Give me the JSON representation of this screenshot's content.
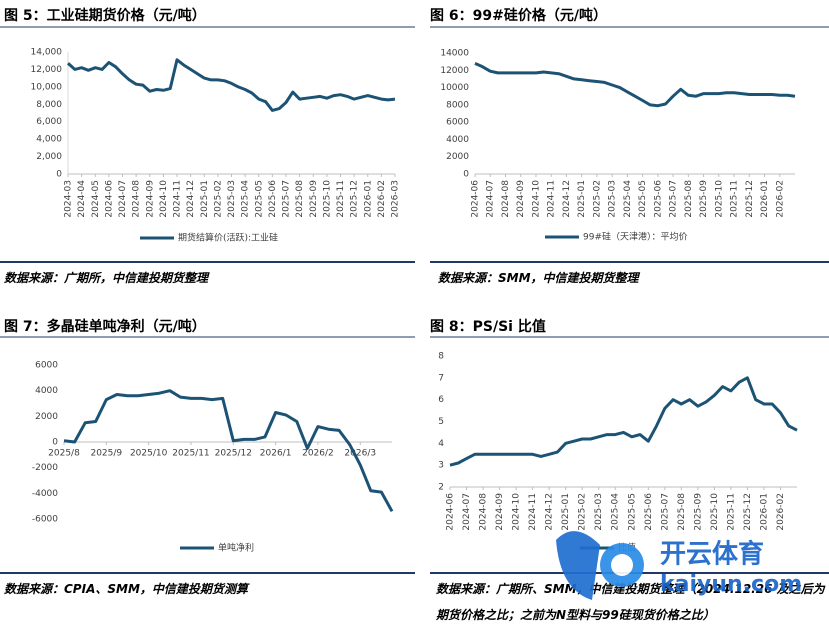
{
  "chart_data": [
    {
      "type": "line",
      "title": "图 5：工业硅期货价格（元/吨）",
      "source": "数据来源：广期所，中信建投期货整理",
      "categories": [
        "2024-03",
        null,
        "2024-04",
        null,
        "2024-05",
        null,
        "2024-06",
        null,
        "2024-07",
        null,
        "2024-08",
        null,
        "2024-09",
        null,
        "2024-10",
        null,
        "2024-11",
        null,
        "2024-12",
        null,
        "2025-01",
        null,
        "2025-02",
        null,
        "2025-03",
        null,
        "2025-04",
        null,
        "2025-05",
        null,
        "2025-06",
        null,
        "2025-07",
        null,
        "2025-08",
        null,
        "2025-09",
        null,
        "2025-10",
        null,
        "2025-11",
        null,
        "2025-12",
        null,
        "2026-01",
        null,
        "2026-02",
        null,
        "2026-03"
      ],
      "series": [
        {
          "name": "期货结算价(活跃):工业硅",
          "color": "#1c5375",
          "values": [
            12700,
            12000,
            12200,
            11900,
            12200,
            12000,
            12800,
            12300,
            11500,
            10800,
            10300,
            10200,
            9500,
            9700,
            9600,
            9800,
            13100,
            12500,
            12000,
            11500,
            11000,
            10800,
            10800,
            10700,
            10400,
            10000,
            9700,
            9300,
            8600,
            8300,
            7300,
            7500,
            8200,
            9400,
            8600,
            8700,
            8800,
            8900,
            8700,
            9000,
            9100,
            8900,
            8600,
            8800,
            9000,
            8800,
            8600,
            8500,
            8600
          ]
        }
      ],
      "ylim": [
        0,
        14000
      ],
      "yticks": [
        0,
        {
          "value": 2000,
          "label": "2,000"
        },
        {
          "value": 4000,
          "label": "4,000"
        },
        {
          "value": 6000,
          "label": "6,000"
        },
        {
          "value": 8000,
          "label": "8,000"
        },
        {
          "value": 10000,
          "label": "10,000"
        },
        {
          "value": 12000,
          "label": "12,000"
        },
        {
          "value": 14000,
          "label": "14,000"
        }
      ],
      "grid": false
    },
    {
      "type": "line",
      "title": "图 6：99#硅价格（元/吨）",
      "source": "数据来源：SMM，中信建投期货整理",
      "categories": [
        "2024-06",
        null,
        "2024-07",
        null,
        "2024-08",
        null,
        "2024-09",
        null,
        "2024-10",
        null,
        "2024-11",
        null,
        "2024-12",
        null,
        "2025-01",
        null,
        "2025-02",
        null,
        "2025-03",
        null,
        "2025-04",
        null,
        "2025-05",
        null,
        "2025-06",
        null,
        "2025-07",
        null,
        "2025-08",
        null,
        "2025-09",
        null,
        "2025-10",
        null,
        "2025-11",
        null,
        "2025-12",
        null,
        "2026-01",
        null,
        "2026-02",
        null,
        null
      ],
      "series": [
        {
          "name": "99#硅（天津港）：平均价",
          "color": "#1c5375",
          "values": [
            12800,
            12400,
            11900,
            11700,
            11700,
            11700,
            11700,
            11700,
            11700,
            11800,
            11700,
            11600,
            11300,
            11000,
            10900,
            10800,
            10700,
            10600,
            10300,
            10000,
            9500,
            9000,
            8500,
            8000,
            7900,
            8100,
            9000,
            9800,
            9100,
            9000,
            9300,
            9300,
            9300,
            9400,
            9400,
            9300,
            9200,
            9200,
            9200,
            9200,
            9100,
            9100,
            9000
          ]
        }
      ],
      "ylim": [
        0,
        14000
      ],
      "yticks": [
        0,
        2000,
        4000,
        6000,
        8000,
        10000,
        12000,
        14000
      ],
      "grid": false
    },
    {
      "type": "line",
      "title": "图 7：多晶硅单吨净利（元/吨）",
      "source": "数据来源：CPIA、SMM，中信建投期货测算",
      "categories": [
        "2025/8",
        null,
        null,
        null,
        "2025/9",
        null,
        null,
        null,
        "2025/10",
        null,
        null,
        null,
        "2025/11",
        null,
        null,
        null,
        "2025/12",
        null,
        null,
        null,
        "2026/1",
        null,
        null,
        null,
        "2026/2",
        null,
        null,
        null,
        "2026/3",
        null,
        null,
        null
      ],
      "series": [
        {
          "name": "单吨净利",
          "color": "#1c5375",
          "values": [
            100,
            0,
            1500,
            1600,
            3300,
            3700,
            3600,
            3600,
            3700,
            3800,
            4000,
            3500,
            3400,
            3400,
            3300,
            3400,
            100,
            200,
            200,
            400,
            2300,
            2100,
            1600,
            -500,
            1200,
            1000,
            900,
            -200,
            -1800,
            -3800,
            -3900,
            -5400
          ]
        }
      ],
      "ylim": [
        -6000,
        6000
      ],
      "yticks": [
        -6000,
        -4000,
        -2000,
        0,
        2000,
        4000,
        6000
      ],
      "grid": false
    },
    {
      "type": "line",
      "title": "图 8：PS/Si 比值",
      "source": "数据来源：广期所、SMM，中信建投期货整理（2024.12.26 及之后为期货价格之比；之前为N型料与99硅现货价格之比）",
      "categories": [
        "2024-06",
        null,
        "2024-07",
        null,
        "2024-08",
        null,
        "2024-09",
        null,
        "2024-10",
        null,
        "2024-11",
        null,
        "2024-12",
        null,
        "2025-01",
        null,
        "2025-02",
        null,
        "2025-03",
        null,
        "2025-04",
        null,
        "2025-05",
        null,
        "2025-06",
        null,
        "2025-07",
        null,
        "2025-08",
        null,
        "2025-09",
        null,
        "2025-10",
        null,
        "2025-11",
        null,
        "2025-12",
        null,
        "2026-01",
        null,
        "2026-02",
        null,
        null
      ],
      "series": [
        {
          "name": "比值",
          "color": "#1c5375",
          "values": [
            3.0,
            3.1,
            3.3,
            3.5,
            3.5,
            3.5,
            3.5,
            3.5,
            3.5,
            3.5,
            3.5,
            3.4,
            3.5,
            3.6,
            4.0,
            4.1,
            4.2,
            4.2,
            4.3,
            4.4,
            4.4,
            4.5,
            4.3,
            4.4,
            4.1,
            4.8,
            5.6,
            6.0,
            5.8,
            6.0,
            5.7,
            5.9,
            6.2,
            6.6,
            6.4,
            6.8,
            7.0,
            6.0,
            5.8,
            5.8,
            5.4,
            4.8,
            4.6
          ]
        }
      ],
      "ylim": [
        2,
        8
      ],
      "yticks": [
        2,
        3,
        4,
        5,
        6,
        7,
        8
      ],
      "grid": false
    }
  ],
  "watermark": {
    "brand": "开云体育",
    "site": "kaiyun.com"
  }
}
